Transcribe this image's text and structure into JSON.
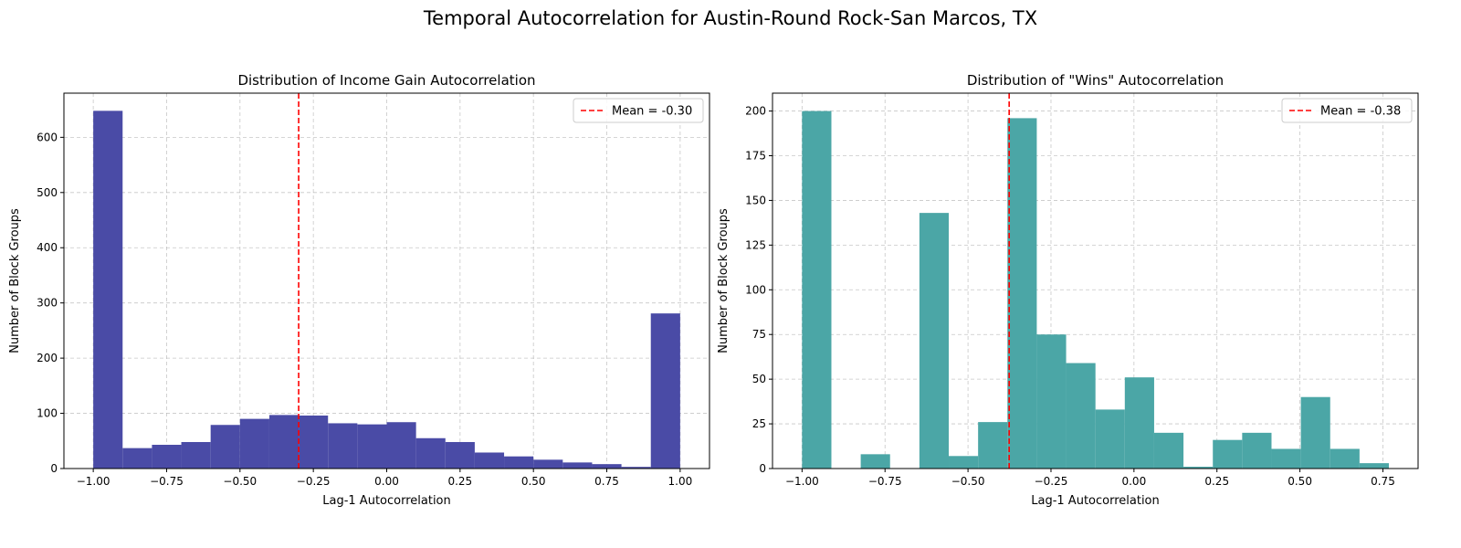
{
  "suptitle": "Temporal Autocorrelation for Austin-Round Rock-San Marcos, TX",
  "chart_data": [
    {
      "type": "bar",
      "subtype": "histogram",
      "title": "Distribution of Income Gain Autocorrelation",
      "xlabel": "Lag-1 Autocorrelation",
      "ylabel": "Number of Block Groups",
      "xlim": [
        -1.1,
        1.1
      ],
      "ylim": [
        0,
        680
      ],
      "xticks": [
        -1.0,
        -0.75,
        -0.5,
        -0.25,
        0.0,
        0.25,
        0.5,
        0.75,
        1.0
      ],
      "xtick_labels": [
        "−1.00",
        "−0.75",
        "−0.50",
        "−0.25",
        "0.00",
        "0.25",
        "0.50",
        "0.75",
        "1.00"
      ],
      "yticks": [
        0,
        100,
        200,
        300,
        400,
        500,
        600
      ],
      "ytick_labels": [
        "0",
        "100",
        "200",
        "300",
        "400",
        "500",
        "600"
      ],
      "color": "#4a4ba6",
      "bin_edges": [
        -1.0,
        -0.9,
        -0.8,
        -0.7,
        -0.6,
        -0.5,
        -0.4,
        -0.3,
        -0.2,
        -0.1,
        0.0,
        0.1,
        0.2,
        0.3,
        0.4,
        0.5,
        0.6,
        0.7,
        0.8,
        0.9,
        1.0
      ],
      "counts": [
        648,
        37,
        43,
        48,
        79,
        90,
        97,
        96,
        82,
        80,
        84,
        55,
        48,
        29,
        22,
        16,
        11,
        8,
        3,
        281
      ],
      "mean_line": {
        "x": -0.3,
        "color": "#ff0000",
        "label": "Mean = -0.30"
      },
      "grid": true,
      "legend_position": "top-right"
    },
    {
      "type": "bar",
      "subtype": "histogram",
      "title": "Distribution of \"Wins\" Autocorrelation",
      "xlabel": "Lag-1 Autocorrelation",
      "ylabel": "Number of Block Groups",
      "xlim": [
        -1.089,
        0.856
      ],
      "ylim": [
        0,
        210
      ],
      "xticks": [
        -1.0,
        -0.75,
        -0.5,
        -0.25,
        0.0,
        0.25,
        0.5,
        0.75
      ],
      "xtick_labels": [
        "−1.00",
        "−0.75",
        "−0.50",
        "−0.25",
        "0.00",
        "0.25",
        "0.50",
        "0.75"
      ],
      "yticks": [
        0,
        25,
        50,
        75,
        100,
        125,
        150,
        175,
        200
      ],
      "ytick_labels": [
        "0",
        "25",
        "50",
        "75",
        "100",
        "125",
        "150",
        "175",
        "200"
      ],
      "color": "#4ba6a6",
      "bin_edges": [
        -1.0,
        -0.9116,
        -0.8232,
        -0.7348,
        -0.6464,
        -0.558,
        -0.4696,
        -0.3812,
        -0.2928,
        -0.2044,
        -0.116,
        -0.0276,
        0.0608,
        0.1492,
        0.2376,
        0.326,
        0.4144,
        0.5028,
        0.5912,
        0.6796,
        0.768
      ],
      "counts": [
        200,
        0,
        8,
        0,
        143,
        7,
        26,
        196,
        75,
        59,
        33,
        51,
        20,
        1,
        16,
        20,
        11,
        40,
        11,
        3
      ],
      "mean_line": {
        "x": -0.376,
        "color": "#ff0000",
        "label": "Mean = -0.38"
      },
      "grid": true,
      "legend_position": "top-right"
    }
  ]
}
